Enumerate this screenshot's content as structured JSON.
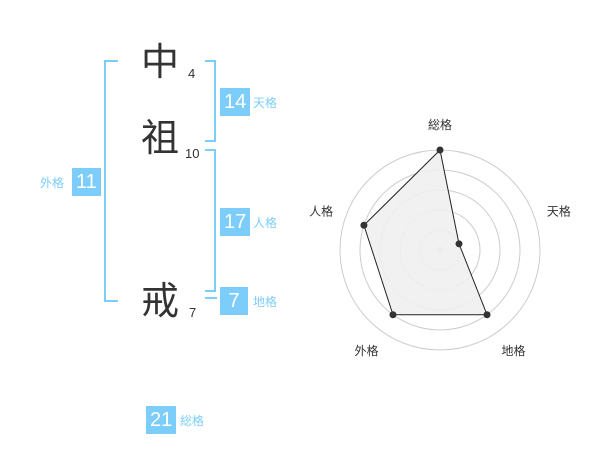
{
  "name": {
    "characters": [
      {
        "char": "中",
        "strokes": "4"
      },
      {
        "char": "祖",
        "strokes": "10"
      },
      {
        "char": "戒",
        "strokes": "7"
      }
    ]
  },
  "kaku": {
    "tenkaku": {
      "label": "天格",
      "value": "14"
    },
    "jinkaku": {
      "label": "人格",
      "value": "17"
    },
    "chikaku": {
      "label": "地格",
      "value": "7"
    },
    "gaikaku": {
      "label": "外格",
      "value": "11"
    },
    "soukaku": {
      "label": "総格",
      "value": "21"
    }
  },
  "colors": {
    "accent": "#7ccdfa",
    "text": "#333333",
    "radar_fill": "#f0f0f0",
    "grid": "#cccccc"
  },
  "chart_data": {
    "type": "radar",
    "axes": [
      "総格",
      "天格",
      "地格",
      "外格",
      "人格"
    ],
    "values": [
      5,
      1,
      4,
      4,
      4
    ],
    "range": [
      0,
      5
    ],
    "rings": 5
  }
}
